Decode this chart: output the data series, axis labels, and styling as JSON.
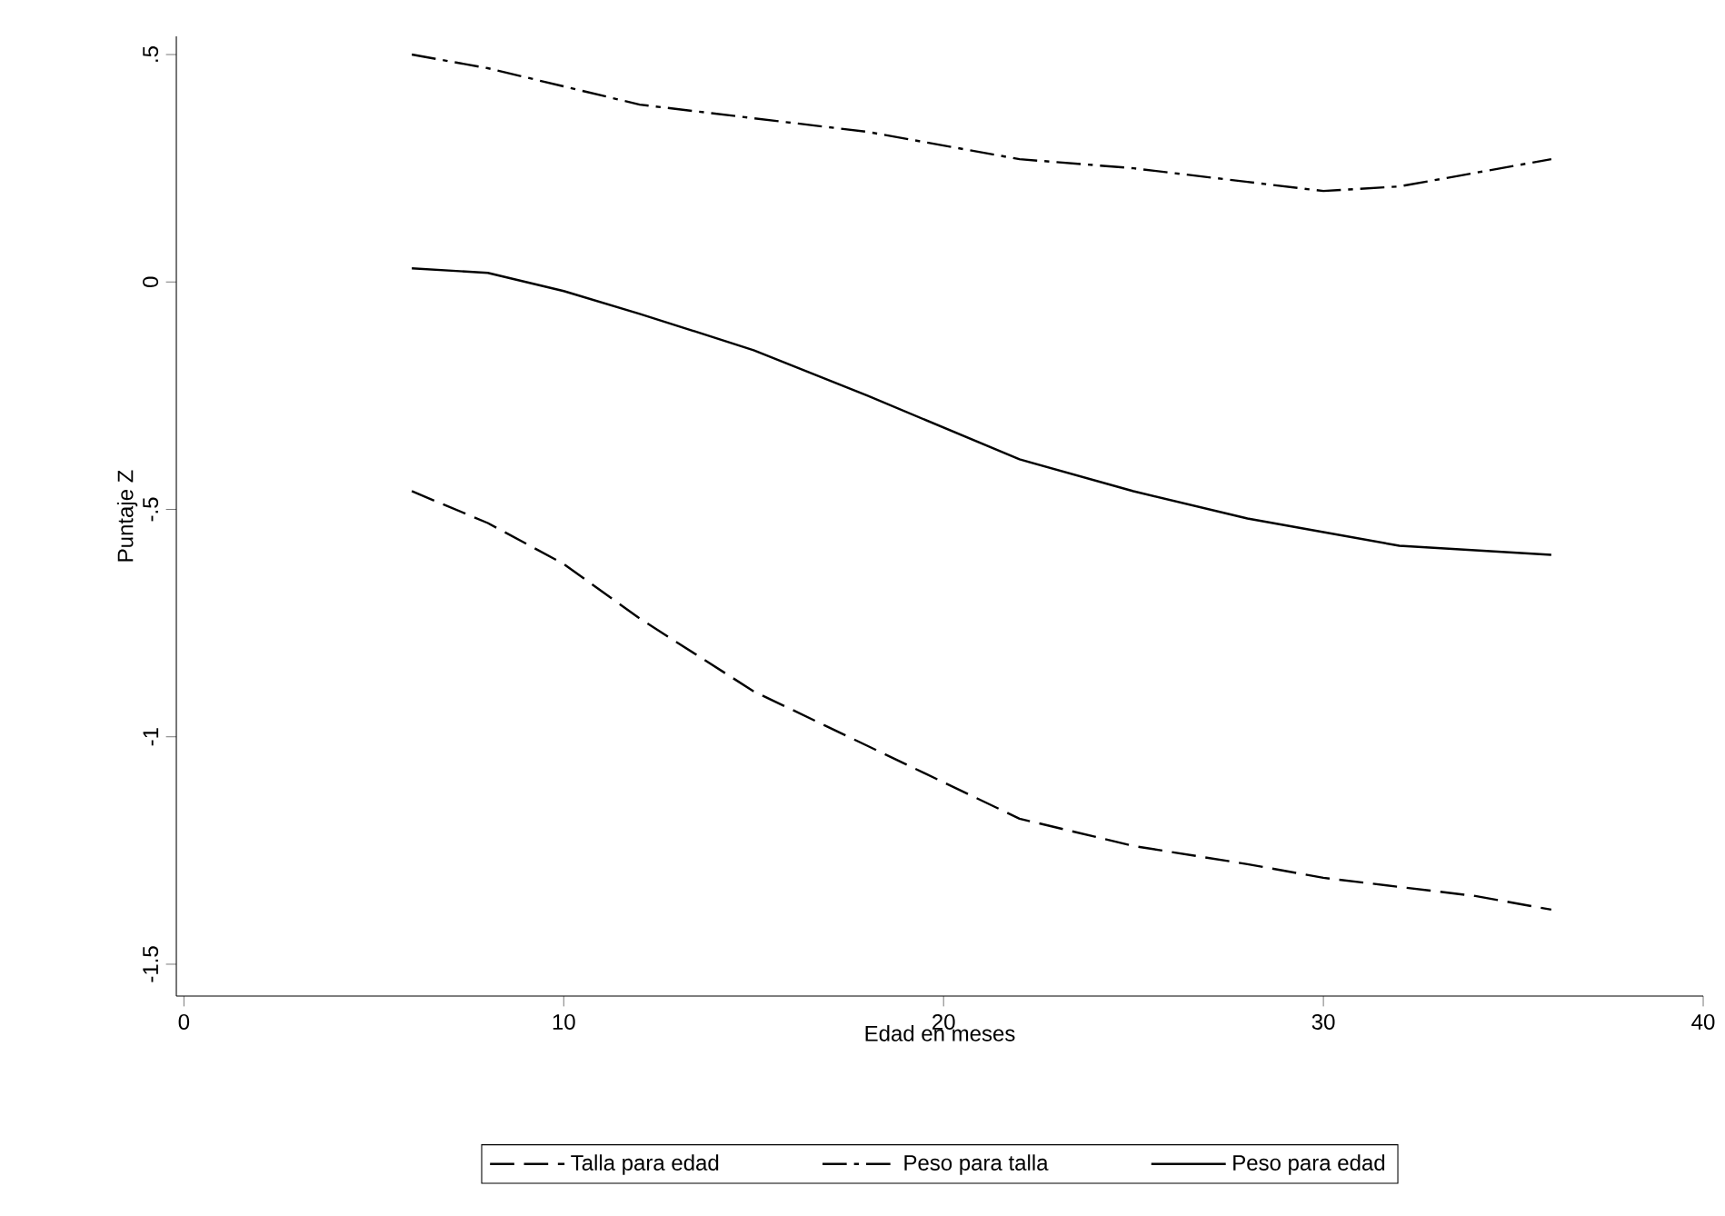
{
  "chart_data": {
    "type": "line",
    "xlabel": "Edad en meses",
    "ylabel": "Puntaje Z",
    "x": [
      6,
      8,
      10,
      12,
      15,
      18,
      20,
      22,
      25,
      28,
      30,
      32,
      34,
      36
    ],
    "series": [
      {
        "name": "Talla para edad",
        "color": "#000000",
        "line_style": "dashed",
        "values": [
          -0.46,
          -0.53,
          -0.62,
          -0.74,
          -0.9,
          -1.02,
          -1.1,
          -1.18,
          -1.24,
          -1.28,
          -1.31,
          -1.33,
          -1.35,
          -1.38
        ]
      },
      {
        "name": "Peso para talla",
        "color": "#000000",
        "line_style": "dashdot",
        "values": [
          0.5,
          0.47,
          0.43,
          0.39,
          0.36,
          0.33,
          0.3,
          0.27,
          0.25,
          0.22,
          0.2,
          0.21,
          0.24,
          0.27
        ]
      },
      {
        "name": "Peso para edad",
        "color": "#000000",
        "line_style": "solid",
        "values": [
          0.03,
          0.02,
          -0.02,
          -0.07,
          -0.15,
          -0.25,
          -0.32,
          -0.39,
          -0.46,
          -0.52,
          -0.55,
          -0.58,
          -0.59,
          -0.6
        ]
      }
    ],
    "xlim": [
      -0.2,
      40
    ],
    "ylim": [
      -1.57,
      0.54
    ],
    "xticks": [
      0,
      10,
      20,
      30,
      40
    ],
    "yticks": [
      {
        "value": -1.5,
        "label": "-1.5"
      },
      {
        "value": -1,
        "label": "-1"
      },
      {
        "value": -0.5,
        "label": "-.5"
      },
      {
        "value": 0,
        "label": "0"
      },
      {
        "value": 0.5,
        "label": ".5"
      }
    ],
    "legend": "bottom",
    "grid": false,
    "marker": "none"
  }
}
